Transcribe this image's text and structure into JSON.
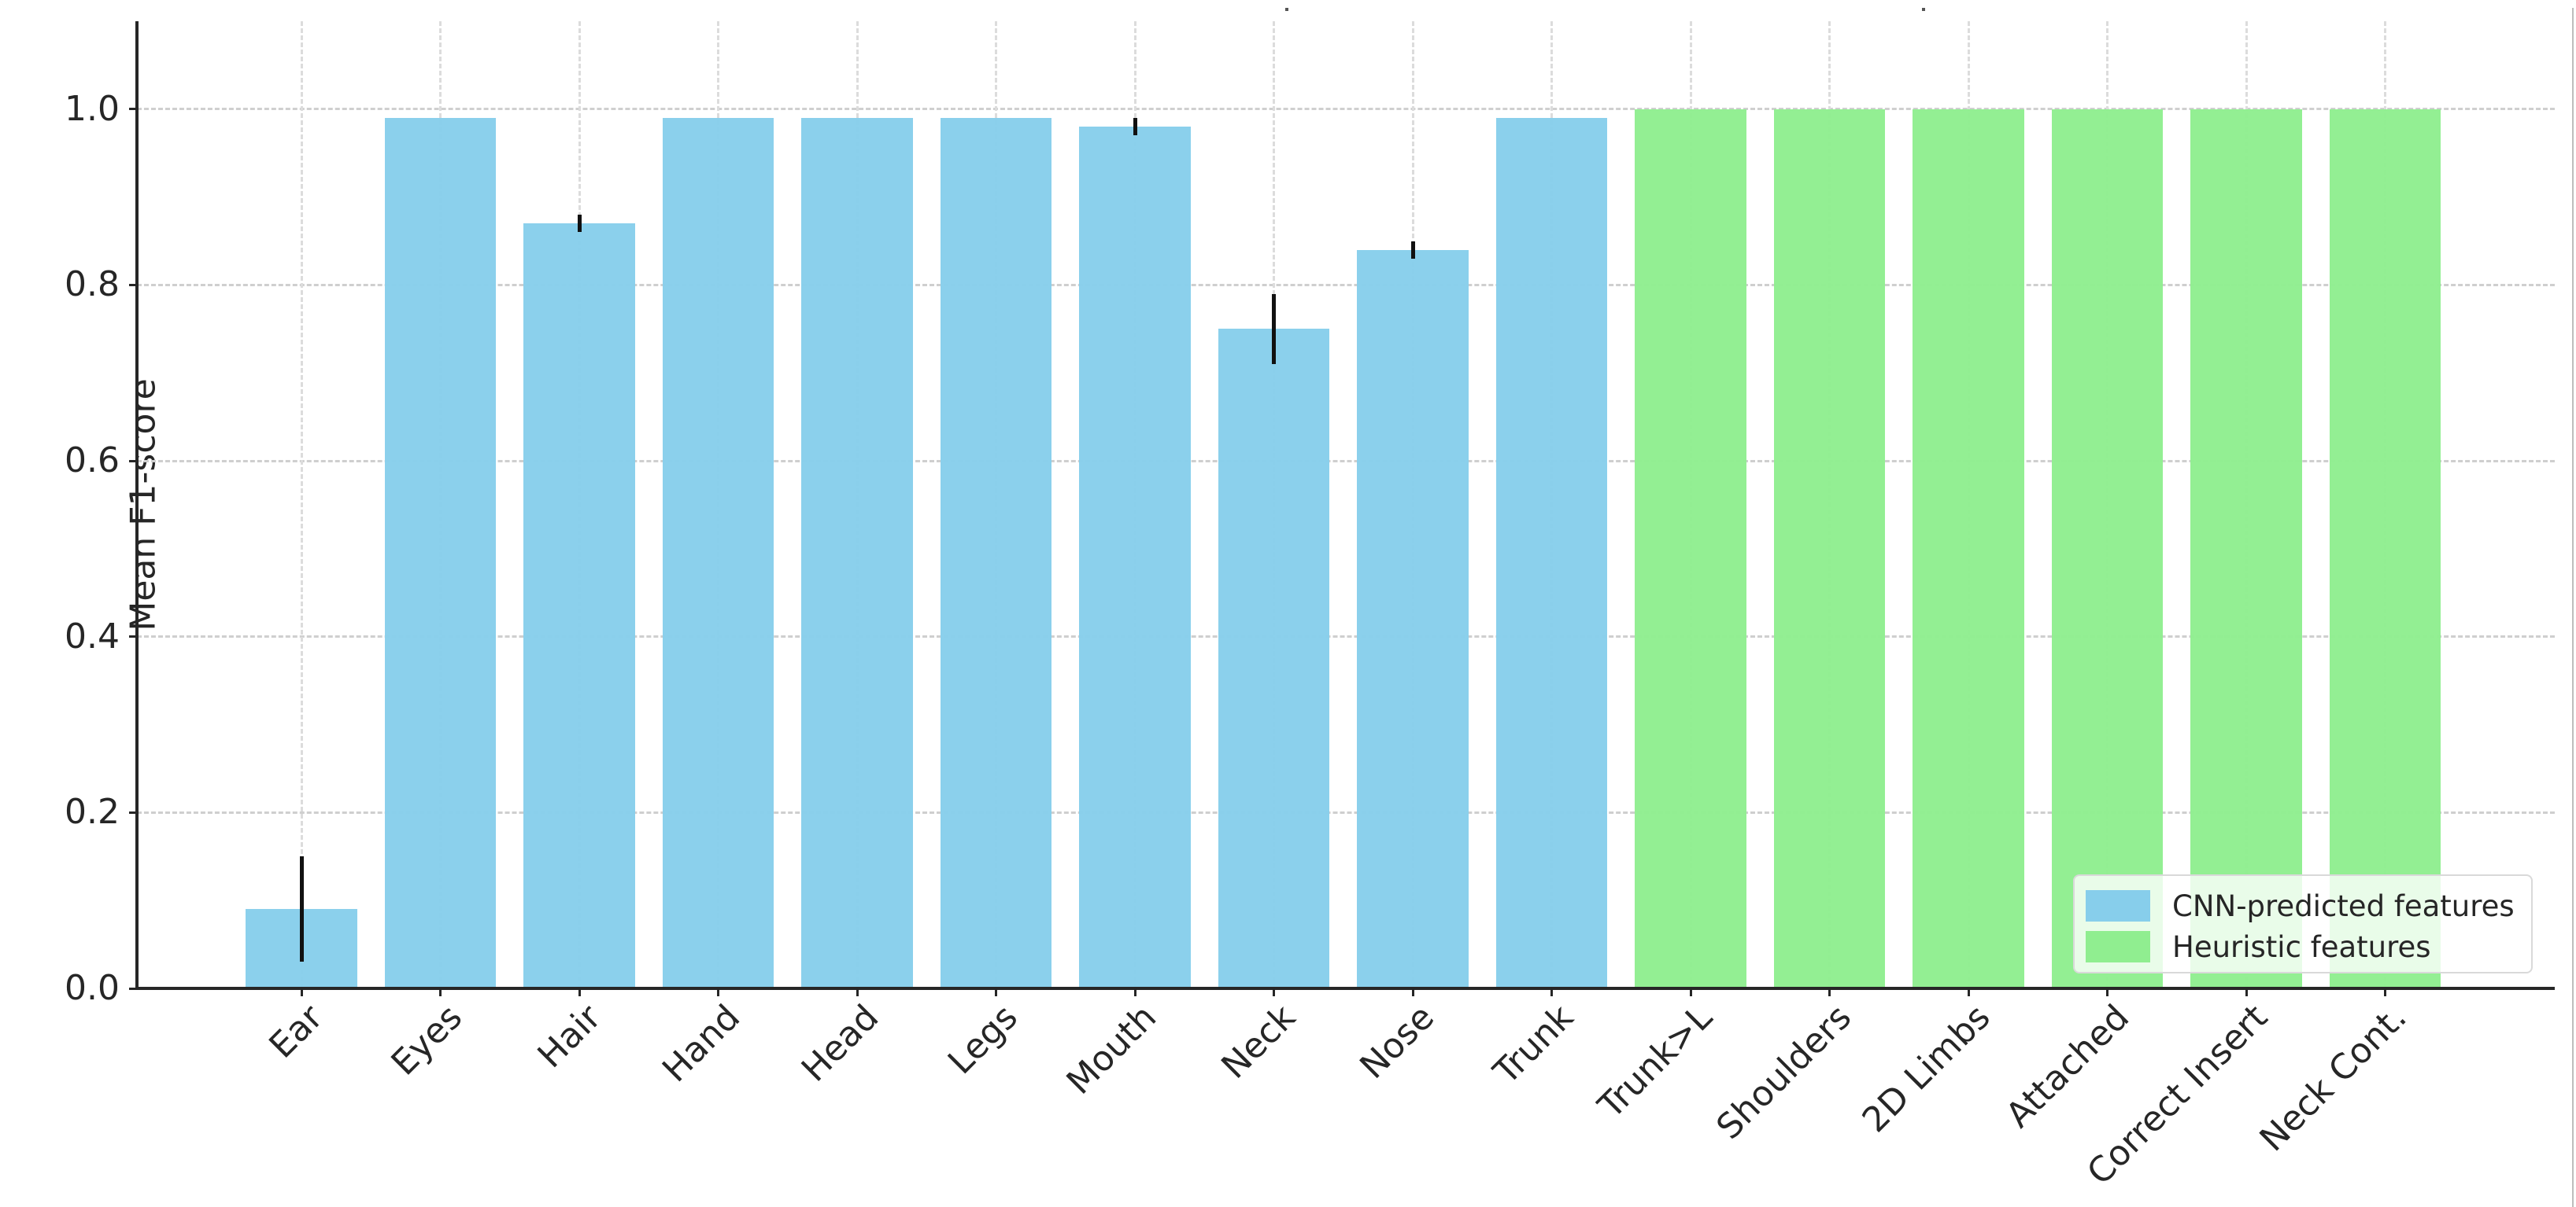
{
  "chart_data": {
    "type": "bar",
    "title": "",
    "xlabel": "",
    "ylabel": "Mean F1-score",
    "ylim": [
      0,
      1.1
    ],
    "yticks": [
      0.0,
      0.2,
      0.4,
      0.6,
      0.8,
      1.0
    ],
    "ytick_labels": [
      "0.0",
      "0.2",
      "0.4",
      "0.6",
      "0.8",
      "1.0"
    ],
    "grid": true,
    "legend_position": "lower right",
    "xtick_rotation": 45,
    "categories": [
      "Ear",
      "Eyes",
      "Hair",
      "Hand",
      "Head",
      "Legs",
      "Mouth",
      "Neck",
      "Nose",
      "Trunk",
      "Trunk>L",
      "Shoulders",
      "2D Limbs",
      "Attached",
      "Correct Insert",
      "Neck Cont."
    ],
    "values": [
      0.09,
      0.99,
      0.87,
      0.99,
      0.99,
      0.99,
      0.98,
      0.75,
      0.84,
      0.99,
      1.0,
      1.0,
      1.0,
      1.0,
      1.0,
      1.0
    ],
    "error": [
      0.06,
      0.0,
      0.01,
      0.0,
      0.0,
      0.0,
      0.01,
      0.04,
      0.01,
      0.0,
      0.0,
      0.0,
      0.0,
      0.0,
      0.0,
      0.0
    ],
    "groups": [
      "CNN-predicted features",
      "CNN-predicted features",
      "CNN-predicted features",
      "CNN-predicted features",
      "CNN-predicted features",
      "CNN-predicted features",
      "CNN-predicted features",
      "CNN-predicted features",
      "CNN-predicted features",
      "CNN-predicted features",
      "Heuristic features",
      "Heuristic features",
      "Heuristic features",
      "Heuristic features",
      "Heuristic features",
      "Heuristic features"
    ],
    "series": [
      {
        "name": "CNN-predicted features",
        "color": "#87CEEB",
        "categories": [
          "Ear",
          "Eyes",
          "Hair",
          "Hand",
          "Head",
          "Legs",
          "Mouth",
          "Neck",
          "Nose",
          "Trunk"
        ],
        "values": [
          0.09,
          0.99,
          0.87,
          0.99,
          0.99,
          0.99,
          0.98,
          0.75,
          0.84,
          0.99
        ],
        "error": [
          0.06,
          0.0,
          0.01,
          0.0,
          0.0,
          0.0,
          0.01,
          0.04,
          0.01,
          0.0
        ]
      },
      {
        "name": "Heuristic features",
        "color": "#90EE90",
        "categories": [
          "Trunk>L",
          "Shoulders",
          "2D Limbs",
          "Attached",
          "Correct Insert",
          "Neck Cont."
        ],
        "values": [
          1.0,
          1.0,
          1.0,
          1.0,
          1.0,
          1.0
        ],
        "error": [
          0,
          0,
          0,
          0,
          0,
          0
        ]
      }
    ],
    "legend": [
      {
        "label": "CNN-predicted features",
        "color": "#87CEEB"
      },
      {
        "label": "Heuristic features",
        "color": "#90EE90"
      }
    ]
  }
}
